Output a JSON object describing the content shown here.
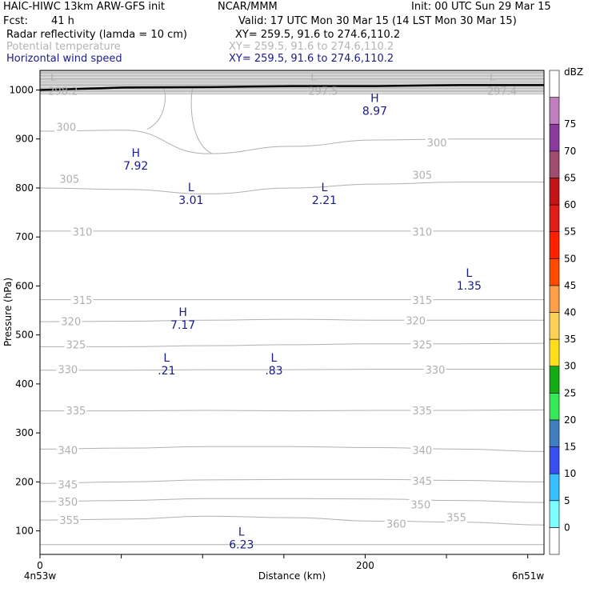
{
  "header": {
    "model": "HAIC-HIWC 13km ARW-GFS init",
    "org": "NCAR/MMM",
    "init": "Init: 00 UTC Sun 29 Mar 15",
    "fcst_label": "Fcst:",
    "fcst_value": "41 h",
    "valid": "Valid: 17 UTC Mon 30 Mar 15 (14 LST Mon 30 Mar 15)",
    "fields": [
      {
        "name": "Radar reflectivity (lamda = 10 cm)",
        "xy": "XY= 259.5, 91.6 to 274.6,110.2",
        "color": "#000000"
      },
      {
        "name": "Potential temperature",
        "xy": "XY= 259.5, 91.6 to 274.6,110.2",
        "color": "#b4b4b4"
      },
      {
        "name": "Horizontal wind speed",
        "xy": "XY= 259.5, 91.6 to 274.6,110.2",
        "color": "#1a1a8c"
      }
    ]
  },
  "chart_data": {
    "type": "cross-section contour",
    "ylabel": "Pressure (hPa)",
    "xlabel": "Distance (km)",
    "x_start_label": "4n53w",
    "x_end_label": "6n51w",
    "xlim": [
      0,
      310
    ],
    "x_ticks": [
      0,
      50,
      100,
      150,
      200,
      250,
      300
    ],
    "x_tick_labels": [
      {
        "x": 0,
        "label": "0"
      },
      {
        "x": 200,
        "label": "200"
      }
    ],
    "ylim": [
      1040,
      52
    ],
    "y_ticks": [
      100,
      200,
      300,
      400,
      500,
      600,
      700,
      800,
      900,
      1000
    ],
    "theta_isentropes": [
      {
        "value": 360,
        "p": [
          72,
          72,
          72,
          72,
          72,
          72,
          72
        ]
      },
      {
        "value": 355,
        "p": [
          122,
          124,
          130,
          127,
          120,
          118,
          112
        ]
      },
      {
        "value": 350,
        "p": [
          160,
          162,
          166,
          166,
          165,
          162,
          158
        ]
      },
      {
        "value": 345,
        "p": [
          197,
          200,
          204,
          205,
          205,
          203,
          200
        ]
      },
      {
        "value": 340,
        "p": [
          267,
          269,
          272,
          272,
          270,
          267,
          262
        ]
      },
      {
        "value": 335,
        "p": [
          345,
          345,
          346,
          345,
          346,
          346,
          347
        ]
      },
      {
        "value": 330,
        "p": [
          428,
          428,
          429,
          429,
          430,
          430,
          430
        ]
      },
      {
        "value": 325,
        "p": [
          476,
          476,
          478,
          480,
          482,
          482,
          483
        ]
      },
      {
        "value": 320,
        "p": [
          527,
          528,
          530,
          532,
          530,
          530,
          530
        ]
      },
      {
        "value": 315,
        "p": [
          572,
          572,
          572,
          572,
          572,
          572,
          572
        ]
      },
      {
        "value": 310,
        "p": [
          712,
          712,
          712,
          712,
          712,
          712,
          712
        ]
      },
      {
        "value": 305,
        "p": [
          800,
          797,
          788,
          800,
          808,
          812,
          812
        ]
      },
      {
        "value": 300,
        "p": [
          916,
          918,
          870,
          885,
          898,
          900,
          900
        ]
      }
    ],
    "theta_line_labels": [
      {
        "text": "360",
        "x": 213,
        "p": 115
      },
      {
        "text": "355",
        "x": 12,
        "p": 122
      },
      {
        "text": "355",
        "x": 250,
        "p": 128
      },
      {
        "text": "350",
        "x": 11,
        "p": 160
      },
      {
        "text": "350",
        "x": 228,
        "p": 154
      },
      {
        "text": "345",
        "x": 11,
        "p": 195
      },
      {
        "text": "345",
        "x": 229,
        "p": 202
      },
      {
        "text": "340",
        "x": 11,
        "p": 265
      },
      {
        "text": "340",
        "x": 229,
        "p": 265
      },
      {
        "text": "335",
        "x": 16,
        "p": 346
      },
      {
        "text": "335",
        "x": 229,
        "p": 346
      },
      {
        "text": "330",
        "x": 11,
        "p": 430
      },
      {
        "text": "330",
        "x": 237,
        "p": 429
      },
      {
        "text": "325",
        "x": 16,
        "p": 481
      },
      {
        "text": "325",
        "x": 229,
        "p": 481
      },
      {
        "text": "320",
        "x": 13,
        "p": 528
      },
      {
        "text": "320",
        "x": 225,
        "p": 530
      },
      {
        "text": "315",
        "x": 20,
        "p": 571
      },
      {
        "text": "315",
        "x": 229,
        "p": 571
      },
      {
        "text": "310",
        "x": 20,
        "p": 711
      },
      {
        "text": "310",
        "x": 229,
        "p": 711
      },
      {
        "text": "305",
        "x": 12,
        "p": 819
      },
      {
        "text": "305",
        "x": 229,
        "p": 827
      },
      {
        "text": "300",
        "x": 10,
        "p": 925
      },
      {
        "text": "300",
        "x": 238,
        "p": 893
      }
    ],
    "theta_extrema": [
      {
        "type": "L",
        "value": "298.2",
        "x": 5,
        "p": 1002
      },
      {
        "type": "L",
        "value": "297.5",
        "x": 165,
        "p": 1002
      },
      {
        "type": "L",
        "value": "297.4",
        "x": 275,
        "p": 1002
      }
    ],
    "wind_extrema": [
      {
        "type": "L",
        "value": "6.23",
        "x": 118,
        "p": 97
      },
      {
        "type": "L",
        "value": ".21",
        "x": 72,
        "p": 452
      },
      {
        "type": "L",
        "value": ".83",
        "x": 138,
        "p": 452
      },
      {
        "type": "H",
        "value": "7.17",
        "x": 82,
        "p": 545
      },
      {
        "type": "L",
        "value": "1.35",
        "x": 258,
        "p": 625
      },
      {
        "type": "L",
        "value": "3.01",
        "x": 87,
        "p": 800
      },
      {
        "type": "L",
        "value": "2.21",
        "x": 169,
        "p": 800
      },
      {
        "type": "H",
        "value": "7.92",
        "x": 53,
        "p": 870
      },
      {
        "type": "H",
        "value": "8.97",
        "x": 200,
        "p": 982
      }
    ],
    "terrain_surface_p": [
      1000,
      1005,
      1006,
      1008,
      1008,
      1010,
      1010
    ],
    "colorbar": {
      "unit": "dBZ",
      "levels": [
        0,
        5,
        10,
        15,
        20,
        25,
        30,
        35,
        40,
        45,
        50,
        55,
        60,
        65,
        70,
        75
      ],
      "colors": [
        "#ffffff",
        "#7dfdfe",
        "#37bfff",
        "#3a4fef",
        "#3f7fbf",
        "#36e756",
        "#15ab15",
        "#ffdf1c",
        "#fed055",
        "#fd9f48",
        "#ff4c00",
        "#ff2000",
        "#e11d17",
        "#c11517",
        "#9f4d6e",
        "#8a3b9f",
        "#c27fc0",
        "#ffffff"
      ]
    }
  }
}
